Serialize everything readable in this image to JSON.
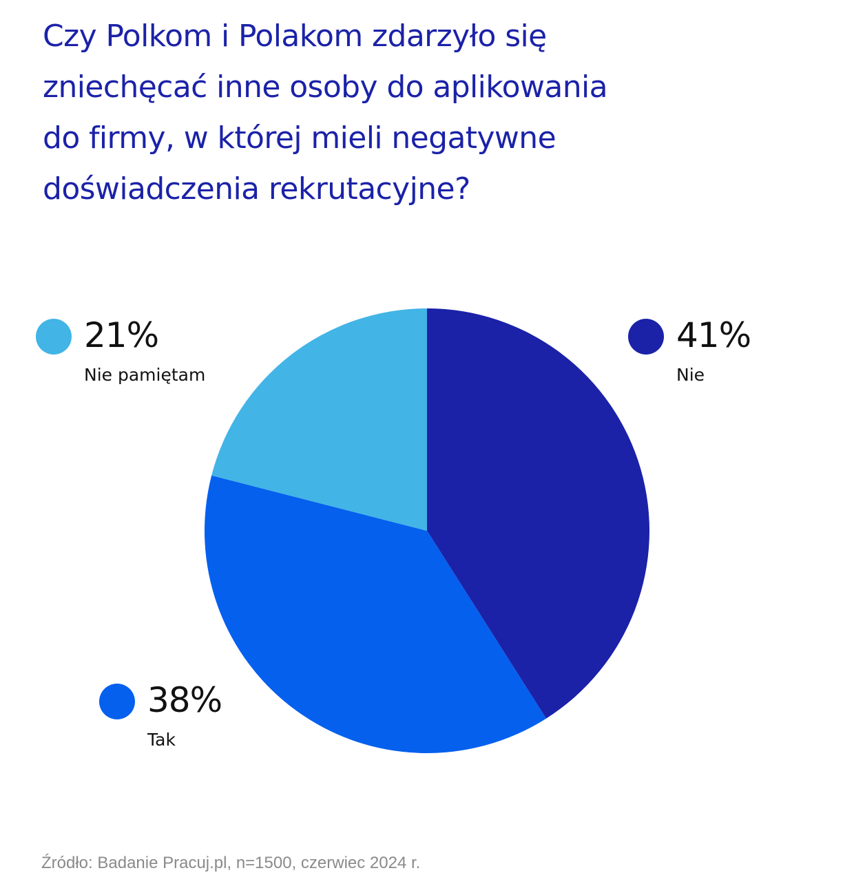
{
  "title_lines": [
    "Czy Polkom i Polakom zdarzyło się",
    "zniechęcać inne osoby do aplikowania",
    "do firmy, w której mieli negatywne",
    "doświadczenia rekrutacyjne?"
  ],
  "colors": {
    "title": "#1b22a8",
    "text": "#111111",
    "source": "#8a8a8a"
  },
  "chart_data": {
    "type": "pie",
    "unit": "%",
    "start": "12 o'clock, clockwise",
    "slices": [
      {
        "label": "Nie",
        "value": 41,
        "display": "41%",
        "color": "#1b22a8"
      },
      {
        "label": "Tak",
        "value": 38,
        "display": "38%",
        "color": "#0560ee"
      },
      {
        "label": "Nie pamiętam",
        "value": 21,
        "display": "21%",
        "color": "#42b4e6"
      }
    ]
  },
  "source": "Źródło: Badanie Pracuj.pl, n=1500, czerwiec 2024 r."
}
